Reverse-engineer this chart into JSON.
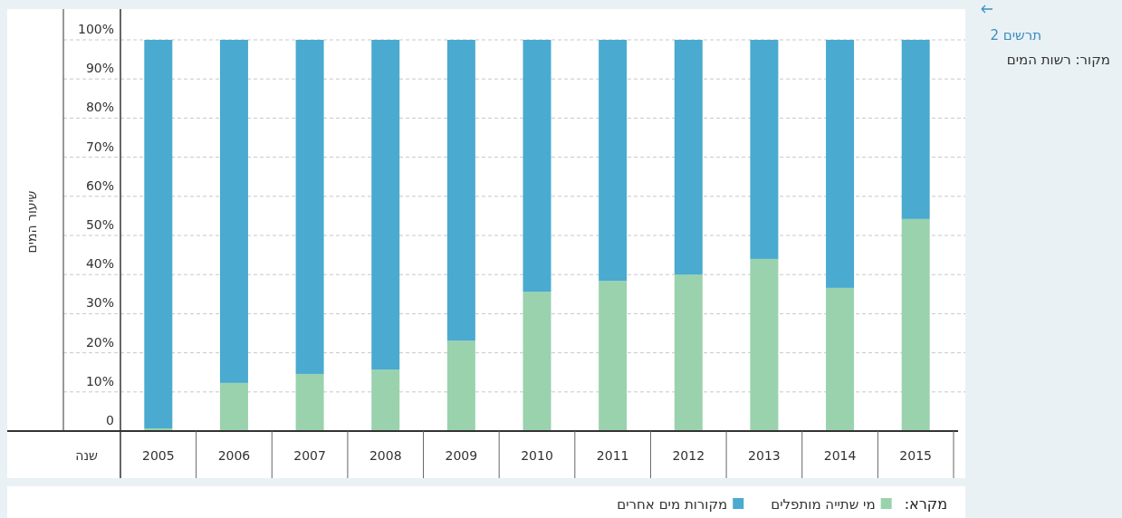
{
  "chart_data": {
    "type": "bar",
    "title": "תרשים 2",
    "xlabel": "שנה",
    "ylabel": "שיעור המים",
    "legend_title": "מקרא:",
    "annotations": [
      "מקור: רשות המים"
    ],
    "categories": [
      "2005",
      "2006",
      "2007",
      "2008",
      "2009",
      "2010",
      "2011",
      "2012",
      "2013",
      "2014",
      "2015"
    ],
    "stacked": true,
    "series": [
      {
        "name": "מי שתייה מותפלים",
        "color": "#9ad2ad",
        "values": [
          0.7,
          12.3,
          14.6,
          15.7,
          23.1,
          35.6,
          38.4,
          40,
          44,
          36.6,
          54.2
        ]
      },
      {
        "name": "מקורות מים אחרים",
        "color": "#4aaacf",
        "values": [
          99.3,
          87.7,
          85.4,
          84.3,
          76.9,
          64.4,
          61.6,
          60,
          56,
          63.4,
          45.8
        ]
      }
    ],
    "ylim": [
      0,
      100
    ],
    "yticks": [
      0,
      {
        "value": 10,
        "label": "10%"
      },
      {
        "value": 20,
        "label": "20%"
      },
      {
        "value": 30,
        "label": "30%"
      },
      {
        "value": 40,
        "label": "40%"
      },
      {
        "value": 50,
        "label": "50%"
      },
      {
        "value": 60,
        "label": "60%"
      },
      {
        "value": 70,
        "label": "70%"
      },
      {
        "value": 80,
        "label": "80%"
      },
      {
        "value": 90,
        "label": "90%"
      },
      {
        "value": 100,
        "label": "100%"
      }
    ],
    "grid": "y",
    "legend": "bottom"
  }
}
